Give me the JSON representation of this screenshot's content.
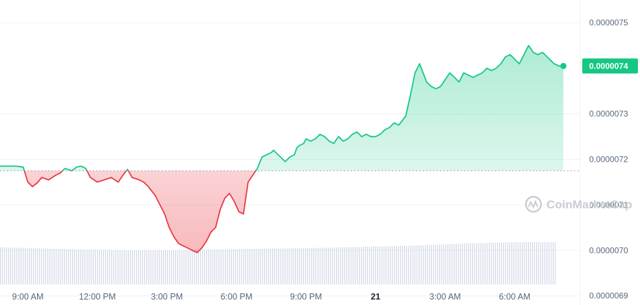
{
  "chart_data": {
    "type": "area",
    "y_ticks": [
      "0.0000075",
      "0.0000073",
      "0.0000072",
      "0.0000071",
      "0.0000070",
      "0.0000069"
    ],
    "ylim": [
      6.88e-06,
      7.55e-06
    ],
    "x_tick_labels": [
      "9:00 AM",
      "12:00 PM",
      "3:00 PM",
      "6:00 PM",
      "9:00 PM",
      "21",
      "3:00 AM",
      "6:00 AM"
    ],
    "x_tick_hours": [
      9,
      12,
      15,
      18,
      21,
      24,
      27,
      30
    ],
    "xlim_hours": [
      7.8,
      32.4
    ],
    "reference_price": 7.175e-06,
    "last_price_label": "0.0000074",
    "last_price": 7.405e-06,
    "colors": {
      "up": "#16c784",
      "down": "#ea3943",
      "volume": "#cfd6e4",
      "grid": "#eff2f5"
    },
    "watermark": "CoinMarketCap",
    "series": [
      {
        "x": [
          7.8,
          8.5,
          8.8,
          9.0,
          9.2,
          9.4,
          9.6,
          9.9,
          10.2,
          10.4,
          10.6,
          10.9,
          11.1,
          11.3,
          11.5,
          11.7,
          12.0,
          12.3,
          12.6,
          12.9,
          13.1,
          13.3,
          13.5,
          13.8,
          14.0,
          14.2,
          14.5,
          14.7,
          14.9,
          15.1,
          15.3,
          15.5,
          15.7,
          15.9,
          16.1,
          16.3,
          16.5,
          16.7,
          16.9,
          17.1,
          17.3,
          17.5,
          17.7,
          17.9,
          18.1,
          18.3,
          18.5,
          18.7,
          18.9,
          19.1,
          19.3,
          19.5,
          19.6,
          19.7,
          19.9,
          20.0,
          20.1,
          20.3,
          20.5,
          20.6,
          20.7,
          20.9,
          21.0,
          21.2,
          21.4,
          21.6,
          21.8,
          22.0,
          22.2,
          22.4,
          22.6,
          22.8,
          23.0,
          23.2,
          23.4,
          23.6,
          23.8,
          24.0,
          24.2,
          24.4,
          24.6,
          24.8,
          25.0,
          25.3,
          25.5,
          25.7,
          25.9,
          26.2,
          26.4,
          26.6,
          26.8,
          27.0,
          27.2,
          27.4,
          27.6,
          27.8,
          28.0,
          28.2,
          28.4,
          28.6,
          28.8,
          29.0,
          29.2,
          29.4,
          29.6,
          29.8,
          30.0,
          30.2,
          30.4,
          30.6,
          30.8,
          31.0,
          31.2,
          31.4,
          31.6,
          31.7,
          31.8,
          31.9,
          32.0,
          32.1
        ],
        "y": [
          7.185e-06,
          7.185e-06,
          7.183e-06,
          7.15e-06,
          7.14e-06,
          7.148e-06,
          7.16e-06,
          7.155e-06,
          7.165e-06,
          7.17e-06,
          7.18e-06,
          7.175e-06,
          7.183e-06,
          7.185e-06,
          7.18e-06,
          7.16e-06,
          7.15e-06,
          7.155e-06,
          7.16e-06,
          7.15e-06,
          7.165e-06,
          7.178e-06,
          7.16e-06,
          7.155e-06,
          7.15e-06,
          7.14e-06,
          7.12e-06,
          7.1e-06,
          7.08e-06,
          7.05e-06,
          7.03e-06,
          7.015e-06,
          7.01e-06,
          7.005e-06,
          7e-06,
          6.995e-06,
          7.005e-06,
          7.02e-06,
          7.04e-06,
          7.05e-06,
          7.09e-06,
          7.115e-06,
          7.125e-06,
          7.108e-06,
          7.085e-06,
          7.08e-06,
          7.15e-06,
          7.165e-06,
          7.18e-06,
          7.205e-06,
          7.21e-06,
          7.215e-06,
          7.22e-06,
          7.215e-06,
          7.205e-06,
          7.2e-06,
          7.195e-06,
          7.205e-06,
          7.21e-06,
          7.225e-06,
          7.23e-06,
          7.235e-06,
          7.245e-06,
          7.24e-06,
          7.245e-06,
          7.255e-06,
          7.25e-06,
          7.24e-06,
          7.235e-06,
          7.25e-06,
          7.24e-06,
          7.245e-06,
          7.255e-06,
          7.26e-06,
          7.25e-06,
          7.255e-06,
          7.25e-06,
          7.25e-06,
          7.255e-06,
          7.265e-06,
          7.27e-06,
          7.28e-06,
          7.275e-06,
          7.295e-06,
          7.34e-06,
          7.39e-06,
          7.41e-06,
          7.37e-06,
          7.36e-06,
          7.355e-06,
          7.36e-06,
          7.375e-06,
          7.39e-06,
          7.38e-06,
          7.37e-06,
          7.39e-06,
          7.385e-06,
          7.38e-06,
          7.385e-06,
          7.39e-06,
          7.4e-06,
          7.395e-06,
          7.4e-06,
          7.41e-06,
          7.425e-06,
          7.43e-06,
          7.42e-06,
          7.41e-06,
          7.43e-06,
          7.45e-06,
          7.435e-06,
          7.43e-06,
          7.435e-06,
          7.425e-06,
          7.415e-06,
          7.41e-06,
          7.408e-06,
          7.405e-06,
          7.405e-06,
          7.405e-06
        ]
      }
    ],
    "volume": {
      "x_start": 7.8,
      "x_end": 31.8,
      "relative_levels": [
        0.55,
        0.48,
        0.4,
        0.34,
        0.3,
        0.28,
        0.3,
        0.34,
        0.38,
        0.42,
        0.46,
        0.5,
        0.56,
        0.62,
        0.68,
        0.78,
        0.88,
        0.95,
        1.0,
        0.98
      ]
    }
  }
}
